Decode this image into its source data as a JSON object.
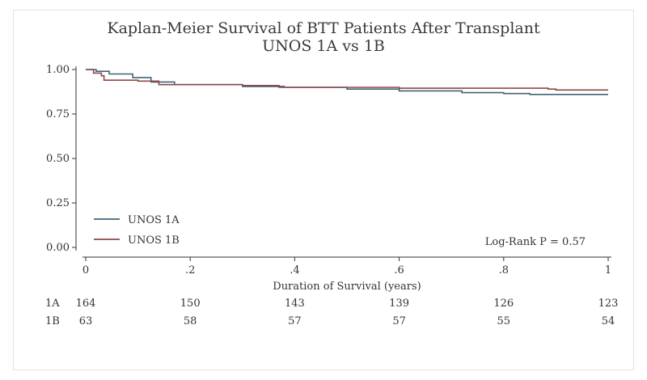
{
  "chart_data": {
    "type": "line",
    "title": "Kaplan-Meier Survival of BTT Patients After Transplant",
    "subtitle": "UNOS 1A vs 1B",
    "xlabel": "Duration of Survival (years)",
    "ylabel": "",
    "xlim": [
      0,
      1
    ],
    "ylim": [
      0,
      1
    ],
    "x_ticks": [
      0,
      0.2,
      0.4,
      0.6,
      0.8,
      1
    ],
    "x_tick_labels": [
      "0",
      ".2",
      ".4",
      ".6",
      ".8",
      "1"
    ],
    "y_ticks": [
      0,
      0.25,
      0.5,
      0.75,
      1
    ],
    "y_tick_labels": [
      "0.00",
      "0.25",
      "0.50",
      "0.75",
      "1.00"
    ],
    "legend_position": "bottom-left",
    "annotation": "Log-Rank P = 0.57",
    "series": [
      {
        "name": "UNOS 1A",
        "color": "#3f6478",
        "steps": [
          [
            0,
            1.0
          ],
          [
            0.02,
            0.99
          ],
          [
            0.045,
            0.975
          ],
          [
            0.09,
            0.955
          ],
          [
            0.125,
            0.93
          ],
          [
            0.17,
            0.915
          ],
          [
            0.3,
            0.905
          ],
          [
            0.38,
            0.9
          ],
          [
            0.5,
            0.89
          ],
          [
            0.6,
            0.88
          ],
          [
            0.72,
            0.87
          ],
          [
            0.8,
            0.865
          ],
          [
            0.85,
            0.86
          ],
          [
            1.0,
            0.86
          ]
        ]
      },
      {
        "name": "UNOS 1B",
        "color": "#8c4848",
        "steps": [
          [
            0,
            1.0
          ],
          [
            0.015,
            0.98
          ],
          [
            0.03,
            0.965
          ],
          [
            0.035,
            0.94
          ],
          [
            0.1,
            0.935
          ],
          [
            0.14,
            0.915
          ],
          [
            0.3,
            0.91
          ],
          [
            0.37,
            0.9
          ],
          [
            0.6,
            0.895
          ],
          [
            0.885,
            0.89
          ],
          [
            0.9,
            0.885
          ],
          [
            1.0,
            0.885
          ]
        ]
      }
    ],
    "risk_table": {
      "timepoints": [
        0,
        0.2,
        0.4,
        0.6,
        0.8,
        1
      ],
      "rows": [
        {
          "label": "1A",
          "values": [
            "164",
            "150",
            "143",
            "139",
            "126",
            "123"
          ]
        },
        {
          "label": "1B",
          "values": [
            "63",
            "58",
            "57",
            "57",
            "55",
            "54"
          ]
        }
      ]
    }
  }
}
